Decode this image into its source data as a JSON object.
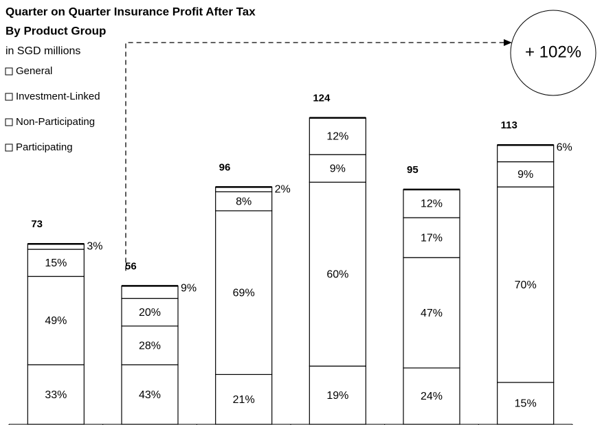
{
  "chart_data": {
    "type": "stacked_percent_bar",
    "title": "Quarter on Quarter Insurance Profit After Tax",
    "subtitle": "By Product Group",
    "unit_label": "in SGD millions",
    "categories": [
      null,
      null,
      null,
      null,
      null,
      null
    ],
    "totals": [
      73,
      56,
      96,
      124,
      95,
      113
    ],
    "series": [
      {
        "name": "Participating",
        "color": "#ffffff",
        "values": [
          33,
          43,
          21,
          19,
          24,
          15
        ],
        "value_labels": [
          "33%",
          "43%",
          "21%",
          "19%",
          "24%",
          "15%"
        ]
      },
      {
        "name": "Non-Participating",
        "color": "#ffffff",
        "values": [
          49,
          28,
          69,
          60,
          47,
          70
        ],
        "value_labels": [
          "49%",
          "28%",
          "69%",
          "60%",
          "47%",
          "70%"
        ]
      },
      {
        "name": "Investment-Linked",
        "color": "#ffffff",
        "values": [
          15,
          20,
          8,
          9,
          17,
          9
        ],
        "value_labels": [
          "15%",
          "20%",
          "8%",
          "9%",
          "17%",
          "9%"
        ]
      },
      {
        "name": "General",
        "color": "#ffffff",
        "values": [
          3,
          9,
          2,
          12,
          12,
          6
        ],
        "value_labels": [
          "3%",
          "9%",
          "2%",
          "12%",
          "12%",
          "6%"
        ]
      }
    ],
    "annotation": "+ 102%"
  }
}
